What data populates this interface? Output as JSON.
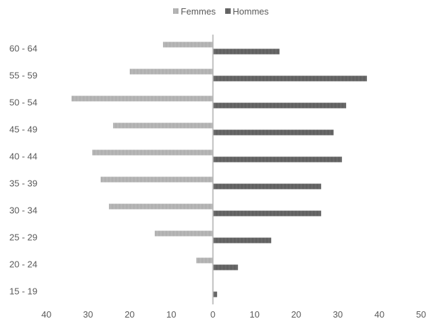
{
  "chart_data": {
    "type": "bar",
    "orientation": "horizontal",
    "categories": [
      "60 - 64",
      "55 - 59",
      "50 - 54",
      "45 - 49",
      "40 - 44",
      "35 - 39",
      "30 - 34",
      "25 - 29",
      "20 - 24",
      "15 - 19"
    ],
    "series": [
      {
        "name": "Femmes",
        "values": [
          -12,
          -20,
          -34,
          -24,
          -29,
          -27,
          -25,
          -14,
          -4,
          0
        ],
        "color": "#a6a6a6",
        "pattern": "vertical-stripes"
      },
      {
        "name": "Hommes",
        "values": [
          16,
          37,
          32,
          29,
          31,
          26,
          26,
          14,
          6,
          1
        ],
        "color": "#595959",
        "pattern": "vertical-stripes"
      }
    ],
    "xlim": [
      -40,
      50
    ],
    "x_ticks": [
      -40,
      -30,
      -20,
      -10,
      0,
      10,
      20,
      30,
      40,
      50
    ],
    "x_tick_labels": [
      "40",
      "30",
      "20",
      "10",
      "0",
      "10",
      "20",
      "30",
      "40",
      "50"
    ],
    "grid": false,
    "legend": "top-center",
    "title": "",
    "xlabel": "",
    "ylabel": ""
  }
}
